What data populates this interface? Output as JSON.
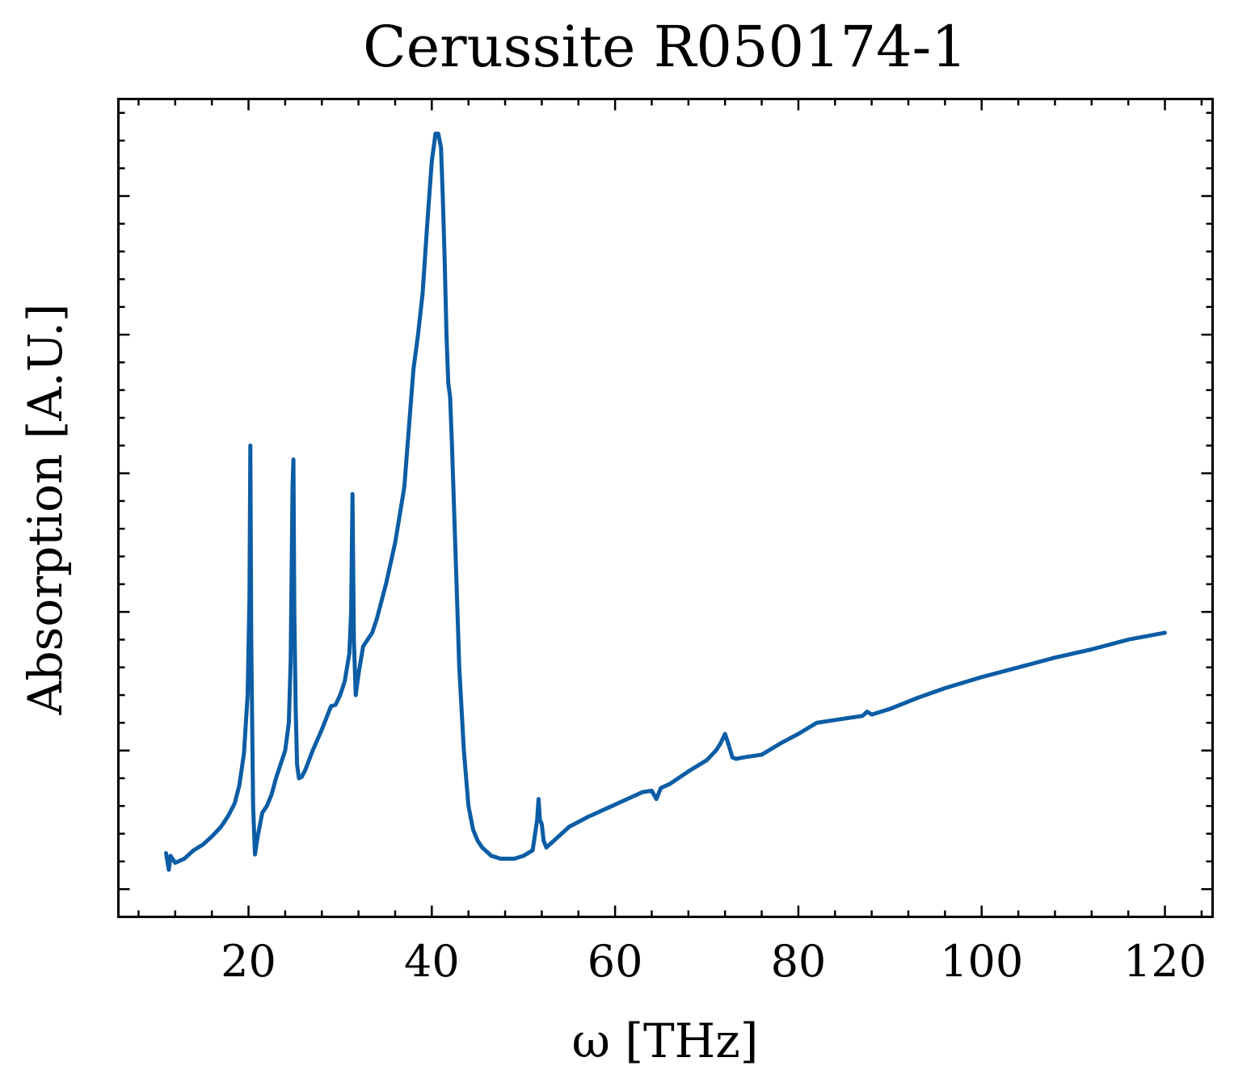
{
  "chart_data": {
    "type": "line",
    "title": "Cerussite R050174-1",
    "xlabel": "ω [THz]",
    "ylabel": "Absorption [A.U.]",
    "xlim": [
      5.8,
      125.2
    ],
    "ylim": [
      -0.02,
      0.57
    ],
    "x_ticks": [
      20,
      40,
      60,
      80,
      100,
      120
    ],
    "x_tick_labels": [
      "20",
      "40",
      "60",
      "80",
      "100",
      "120"
    ],
    "y_ticks": [
      0.0,
      0.1,
      0.2,
      0.3,
      0.4,
      0.5
    ],
    "y_tick_labels_shown": false,
    "x_minor_step": 4,
    "y_minor_step": 0.02,
    "ticks_direction": "in",
    "grid": false,
    "legend": "none",
    "line_color": "#0C5DA5",
    "series": [
      {
        "x": [
          11.0,
          11.3,
          11.5,
          12.0,
          13.0,
          14.0,
          15.0,
          16.0,
          17.0,
          17.8,
          18.5,
          19.0,
          19.5,
          19.9,
          20.1,
          20.2,
          20.3,
          20.5,
          20.7,
          21.0,
          21.5,
          22.0,
          22.5,
          23.0,
          23.5,
          24.0,
          24.4,
          24.6,
          24.8,
          24.9,
          25.0,
          25.15,
          25.3,
          25.5,
          25.8,
          26.2,
          27.0,
          28.0,
          29.0,
          29.5,
          30.0,
          30.5,
          31.0,
          31.2,
          31.35,
          31.5,
          31.7,
          32.0,
          32.5,
          33.0,
          33.5,
          34.0,
          35.0,
          36.0,
          37.0,
          38.0,
          38.5,
          39.0,
          39.5,
          40.0,
          40.4,
          40.7,
          41.0,
          41.2,
          41.4,
          41.6,
          41.8,
          42.0,
          42.2,
          42.5,
          42.8,
          43.0,
          43.5,
          44.0,
          44.5,
          45.0,
          45.5,
          46.0,
          46.5,
          47.0,
          47.5,
          48.0,
          49.0,
          50.0,
          51.0,
          51.5,
          51.65,
          51.8,
          52.0,
          52.2,
          52.5,
          53.5,
          55.0,
          57.0,
          59.0,
          61.0,
          63.0,
          64.0,
          64.5,
          65.0,
          66.0,
          68.0,
          70.0,
          71.0,
          71.5,
          72.0,
          72.4,
          72.8,
          73.2,
          74.0,
          76.0,
          78.0,
          80.0,
          82.0,
          85.0,
          87.0,
          87.5,
          88.0,
          90.0,
          93.0,
          96.0,
          100.0,
          104.0,
          108.0,
          112.0,
          116.0,
          120.0
        ],
        "y": [
          0.026,
          0.014,
          0.024,
          0.019,
          0.022,
          0.028,
          0.032,
          0.038,
          0.045,
          0.053,
          0.062,
          0.075,
          0.098,
          0.14,
          0.21,
          0.32,
          0.18,
          0.06,
          0.025,
          0.038,
          0.055,
          0.06,
          0.068,
          0.08,
          0.09,
          0.1,
          0.12,
          0.165,
          0.29,
          0.31,
          0.2,
          0.13,
          0.09,
          0.08,
          0.081,
          0.086,
          0.1,
          0.115,
          0.132,
          0.133,
          0.14,
          0.15,
          0.17,
          0.2,
          0.285,
          0.18,
          0.14,
          0.155,
          0.175,
          0.18,
          0.185,
          0.195,
          0.22,
          0.25,
          0.29,
          0.375,
          0.4,
          0.43,
          0.48,
          0.525,
          0.545,
          0.545,
          0.535,
          0.5,
          0.455,
          0.4,
          0.365,
          0.355,
          0.32,
          0.26,
          0.2,
          0.16,
          0.1,
          0.06,
          0.043,
          0.035,
          0.03,
          0.027,
          0.024,
          0.023,
          0.022,
          0.022,
          0.022,
          0.024,
          0.028,
          0.05,
          0.065,
          0.05,
          0.047,
          0.035,
          0.03,
          0.036,
          0.045,
          0.052,
          0.058,
          0.064,
          0.07,
          0.071,
          0.065,
          0.073,
          0.076,
          0.085,
          0.093,
          0.1,
          0.105,
          0.112,
          0.104,
          0.095,
          0.094,
          0.095,
          0.097,
          0.105,
          0.112,
          0.12,
          0.123,
          0.125,
          0.128,
          0.126,
          0.13,
          0.138,
          0.145,
          0.153,
          0.16,
          0.167,
          0.173,
          0.18,
          0.185
        ]
      }
    ]
  }
}
